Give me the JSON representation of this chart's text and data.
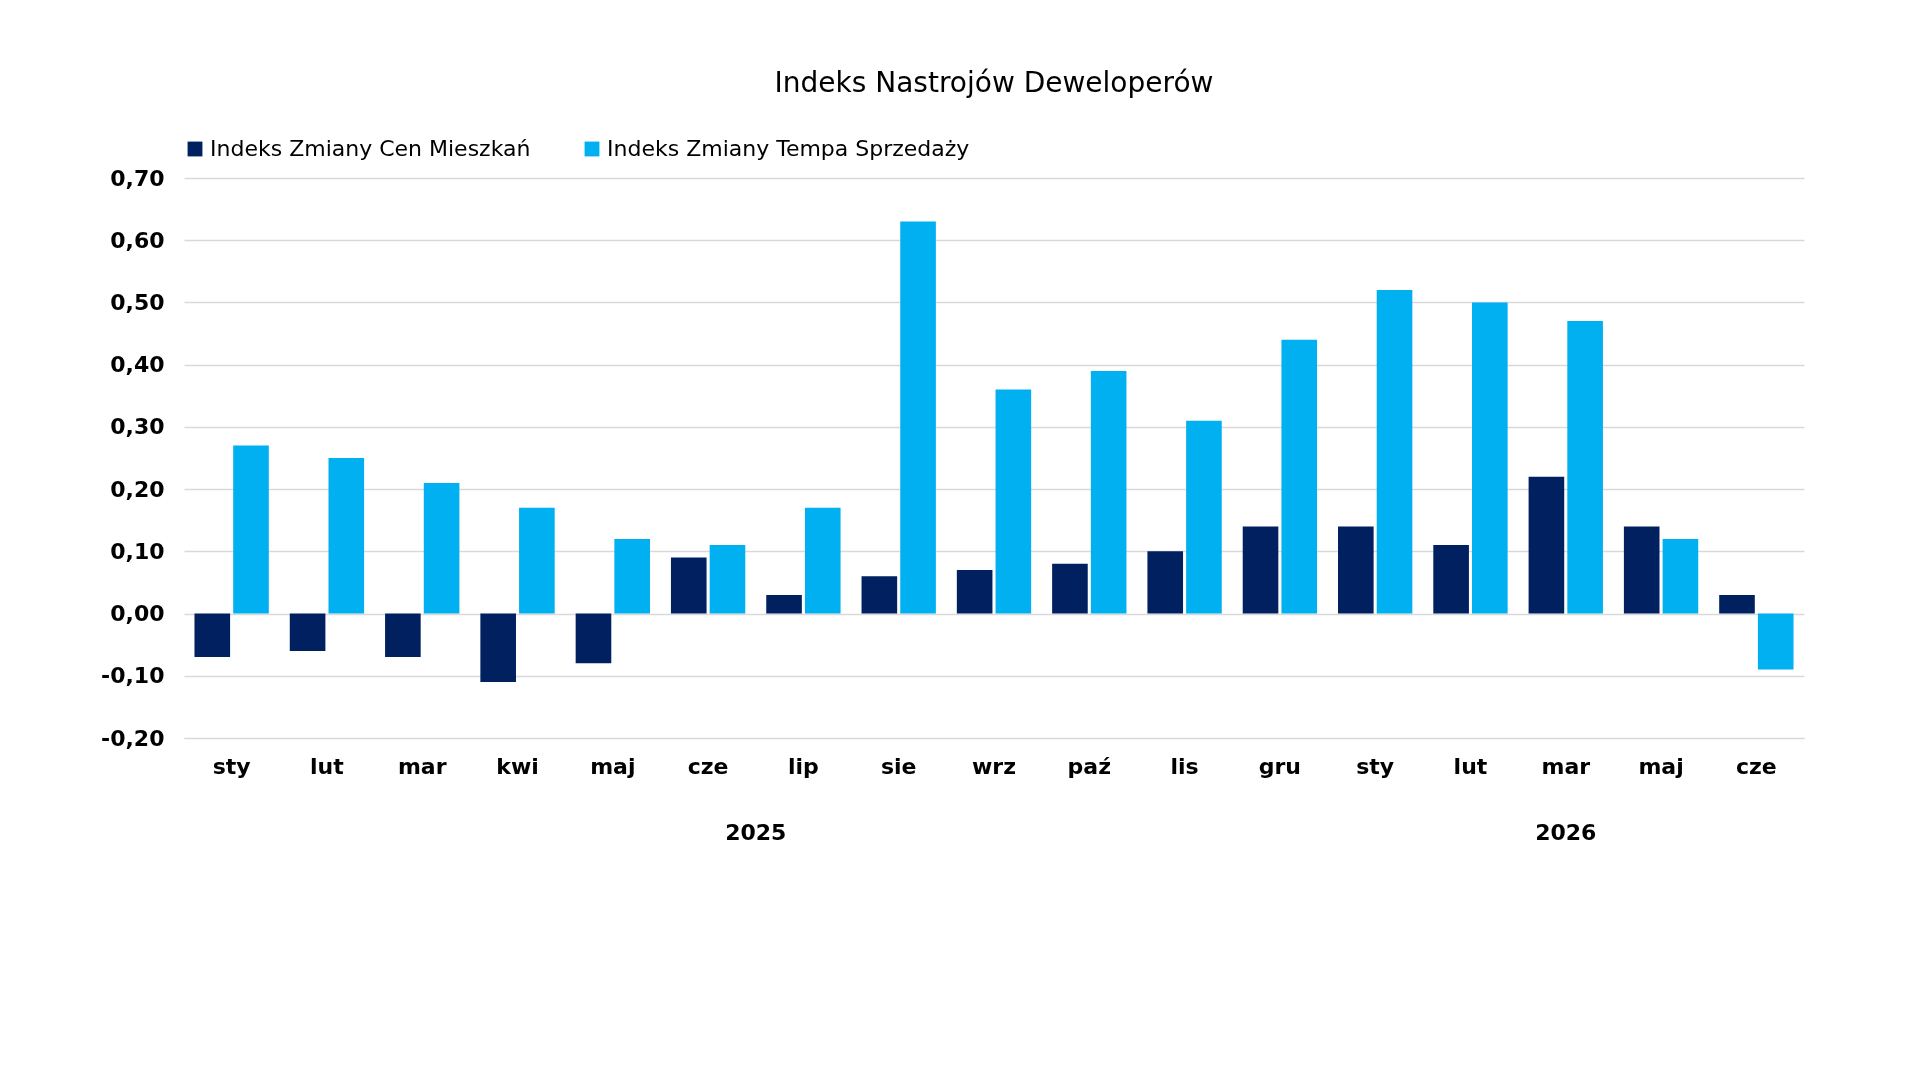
{
  "chart_data": {
    "type": "bar",
    "title": "Indeks Nastrojów Deweloperów",
    "categories": [
      "sty",
      "lut",
      "mar",
      "kwi",
      "maj",
      "cze",
      "lip",
      "sie",
      "wrz",
      "paź",
      "lis",
      "gru",
      "sty",
      "lut",
      "mar",
      "maj",
      "cze"
    ],
    "series": [
      {
        "name": "Indeks Zmiany Cen Mieszkań",
        "color": "#002060",
        "values": [
          -0.07,
          -0.06,
          -0.07,
          -0.11,
          -0.08,
          0.09,
          0.03,
          0.06,
          0.07,
          0.08,
          0.1,
          0.14,
          0.14,
          0.11,
          0.22,
          0.14,
          0.03
        ]
      },
      {
        "name": "Indeks Zmiany Tempa Sprzedaży",
        "color": "#00b0f0",
        "values": [
          0.27,
          0.25,
          0.21,
          0.17,
          0.12,
          0.11,
          0.17,
          0.63,
          0.36,
          0.39,
          0.31,
          0.44,
          0.52,
          0.5,
          0.47,
          0.12,
          -0.09
        ]
      }
    ],
    "ylim": [
      -0.2,
      0.7
    ],
    "yticks": [
      {
        "value": -0.2,
        "label": "-0,20"
      },
      {
        "value": -0.1,
        "label": "-0,10"
      },
      {
        "value": 0,
        "label": "0,00"
      },
      {
        "value": 0.1,
        "label": "0,10"
      },
      {
        "value": 0.2,
        "label": "0,20"
      },
      {
        "value": 0.3,
        "label": "0,30"
      },
      {
        "value": 0.4,
        "label": "0,40"
      },
      {
        "value": 0.5,
        "label": "0,50"
      },
      {
        "value": 0.6,
        "label": "0,60"
      },
      {
        "value": 0.7,
        "label": "0,70"
      }
    ],
    "grid": "y",
    "legend": "top",
    "annotations": [
      "2025",
      "2026"
    ]
  }
}
